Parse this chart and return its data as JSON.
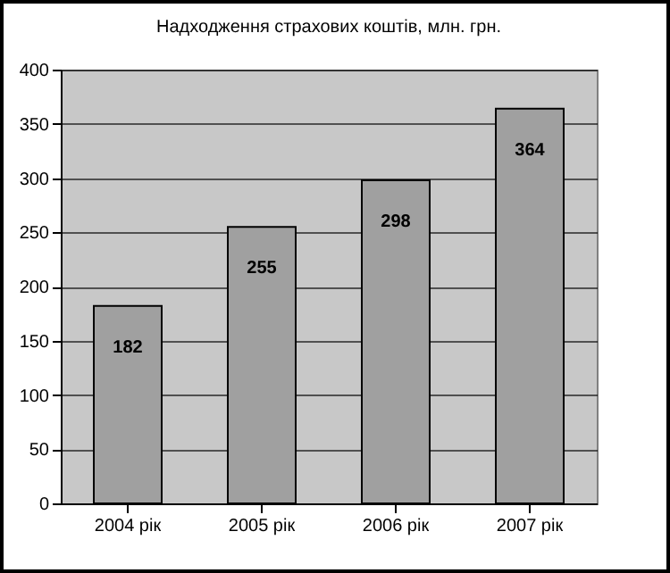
{
  "chart_data": {
    "type": "bar",
    "title": "Надходження страхових коштів, млн. грн.",
    "categories": [
      "2004 рік",
      "2005 рік",
      "2006 рік",
      "2007 рік"
    ],
    "values": [
      182,
      255,
      298,
      364
    ],
    "color": "#a0a0a0",
    "ylim": [
      0,
      400
    ],
    "yticks": [
      0,
      50,
      100,
      150,
      200,
      250,
      300,
      350,
      400
    ],
    "grid": "y",
    "data_labels": true
  }
}
